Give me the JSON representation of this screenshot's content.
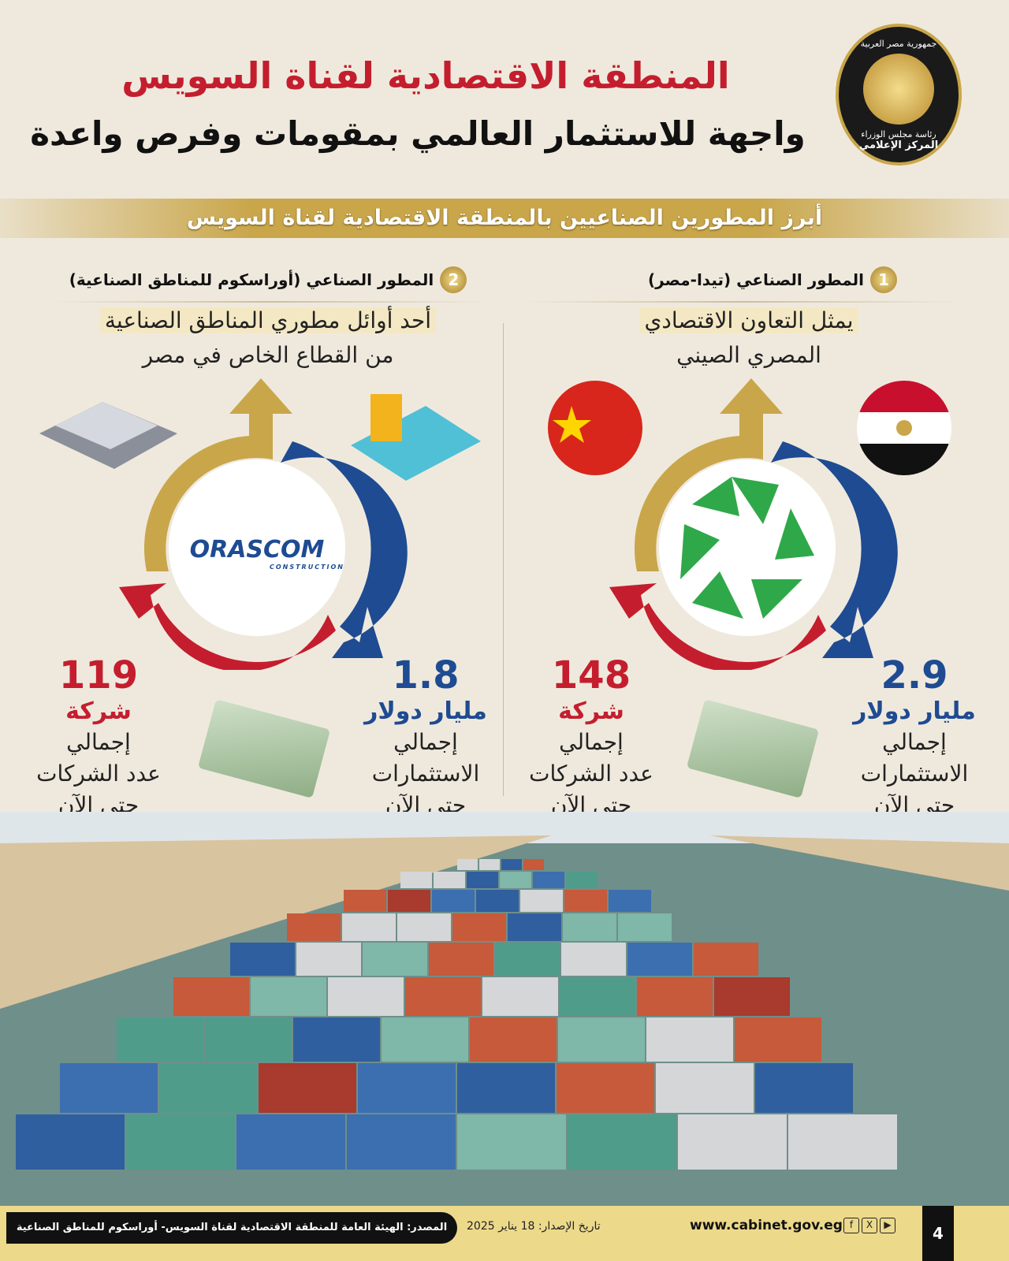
{
  "header": {
    "title_line1": "المنطقة الاقتصادية لقناة السويس",
    "title_line2": "واجهة للاستثمار العالمي بمقومات وفرص واعدة"
  },
  "logo": {
    "top": "جمهورية مصر العربية",
    "middle": "رئاسة مجلس الوزراء",
    "bottom": "المركز الإعلامي"
  },
  "banner": "أبرز المطورين الصناعيين بالمنطقة الاقتصادية لقناة السويس",
  "developers": [
    {
      "number": "1",
      "title": "المطور الصناعي (تيدا-مصر)",
      "desc_line1": "يمثل التعاون الاقتصادي",
      "desc_line2": "المصري الصيني",
      "investment_value": "2.9",
      "investment_unit": "مليار دولار",
      "investment_label": [
        "إجمالي",
        "الاستثمارات",
        "حتى الآن"
      ],
      "companies_value": "148",
      "companies_unit": "شركة",
      "companies_label": [
        "إجمالي",
        "عدد الشركات",
        "حتى الآن"
      ]
    },
    {
      "number": "2",
      "title": "المطور الصناعي (أوراسكوم للمناطق الصناعية)",
      "desc_line1": "أحد أوائل مطوري المناطق الصناعية",
      "desc_line2": "من القطاع الخاص في مصر",
      "logo_text": "ORASCOM",
      "logo_sub": "CONSTRUCTION",
      "investment_value": "1.8",
      "investment_unit": "مليار دولار",
      "investment_label": [
        "إجمالي",
        "الاستثمارات",
        "حتى الآن"
      ],
      "companies_value": "119",
      "companies_unit": "شركة",
      "companies_label": [
        "إجمالي",
        "عدد الشركات",
        "حتى الآن"
      ]
    }
  ],
  "footer": {
    "source": "المصدر: الهيئة العامة للمنطقة الاقتصادية لقناة السويس- أوراسكوم للمناطق الصناعية",
    "date": "تاريخ الإصدار: 18 يناير 2025",
    "url": "www.cabinet.gov.eg",
    "page": "4",
    "social": [
      "f",
      "X",
      "▶"
    ]
  },
  "colors": {
    "red": "#c41e2e",
    "blue": "#1e4b92",
    "gold": "#c9a64a"
  }
}
